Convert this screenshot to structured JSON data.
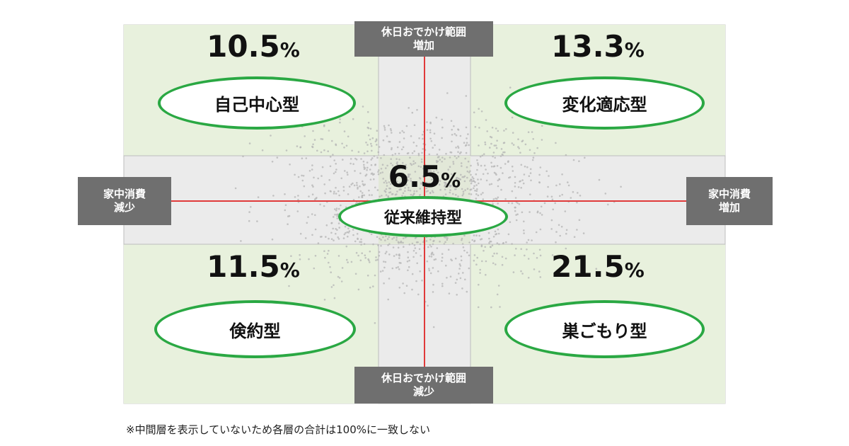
{
  "axis_labels": {
    "top": [
      "休日おでかけ範囲",
      "増加"
    ],
    "bottom": [
      "休日おでかけ範囲",
      "減少"
    ],
    "left": [
      "家中消費",
      "減少"
    ],
    "right": [
      "家中消費",
      "増加"
    ]
  },
  "quadrants": {
    "top_left": {
      "value": "10.5",
      "unit": "%",
      "label": "自己中心型"
    },
    "top_right": {
      "value": "13.3",
      "unit": "%",
      "label": "変化適応型"
    },
    "center": {
      "value": "6.5",
      "unit": "%",
      "label": "従来維持型"
    },
    "bottom_left": {
      "value": "11.5",
      "unit": "%",
      "label": "倹約型"
    },
    "bottom_right": {
      "value": "21.5",
      "unit": "%",
      "label": "巣ごもり型"
    }
  },
  "footnote": "※中間層を表示していないため各層の合計は100%に一致しない",
  "colors": {
    "quadrant_fill": "#e8f1dd",
    "band_fill": "#ebebeb",
    "axis_line": "#e03a3a",
    "label_bg": "#6f6f6f",
    "ellipse_border": "#2aa843",
    "dots": "#b4b4b4"
  }
}
